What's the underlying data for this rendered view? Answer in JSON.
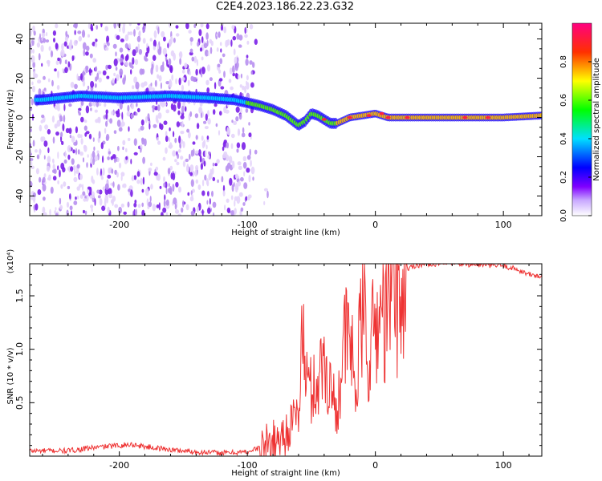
{
  "title": "C2E4.2023.186.22.23.G32",
  "chart_data": [
    {
      "type": "heatmap",
      "xlabel": "Height of straight line (km)",
      "ylabel": "Frequency (Hz)",
      "xlim": [
        -270,
        130
      ],
      "ylim": [
        -50,
        48
      ],
      "xticks": [
        -200,
        -100,
        0,
        100
      ],
      "yticks": [
        -40,
        -20,
        0,
        20,
        40
      ],
      "colorbar": {
        "label": "Normalized spectral amplitude",
        "range": [
          0,
          1
        ],
        "ticks": [
          0.0,
          0.2,
          0.4,
          0.6,
          0.8
        ]
      },
      "noise_region_x": [
        -270,
        -95
      ],
      "ridge": {
        "x": [
          -260,
          -230,
          -200,
          -160,
          -130,
          -110,
          -90,
          -80,
          -70,
          -60,
          -55,
          -50,
          -45,
          -40,
          -35,
          -30,
          -20,
          -10,
          0,
          10,
          20,
          40,
          60,
          80,
          100,
          130
        ],
        "frequency": [
          9,
          11,
          10,
          11,
          10,
          9,
          6,
          4,
          1,
          -4,
          -2,
          2,
          1,
          -1,
          -3,
          -3,
          0,
          1,
          2,
          0,
          0,
          0,
          0,
          0,
          0,
          1
        ]
      }
    },
    {
      "type": "line",
      "xlabel": "Height of straight line (km)",
      "ylabel": "SNR (10 * v/v)",
      "multiplier_label": "(x10⁴)",
      "xlim": [
        -270,
        130
      ],
      "ylim": [
        0,
        18000
      ],
      "xticks": [
        -200,
        -100,
        0,
        100
      ],
      "yticks": [
        5000,
        10000,
        15000
      ],
      "ytick_labels": [
        "0.5",
        "1.0",
        "1.5"
      ],
      "color": "#ee3333",
      "series": [
        {
          "x": [
            -270,
            -240,
            -220,
            -200,
            -190,
            -180,
            -160,
            -140,
            -120,
            -100,
            -90,
            -80,
            -70,
            -60,
            -57,
            -55,
            -50,
            -45,
            -40,
            -30,
            -25,
            -20,
            -15,
            -10,
            -5,
            0,
            5,
            10,
            15,
            20,
            25,
            30,
            40,
            50,
            60,
            80,
            100,
            110,
            120,
            130
          ],
          "values": [
            500,
            500,
            800,
            1000,
            1100,
            900,
            600,
            400,
            300,
            400,
            800,
            1200,
            2200,
            4000,
            12000,
            8000,
            6000,
            7000,
            9000,
            4000,
            10500,
            11000,
            6000,
            14000,
            9500,
            12000,
            13500,
            14500,
            16000,
            15000,
            17500,
            17800,
            18000,
            18000,
            18000,
            17900,
            17800,
            17500,
            17000,
            16800
          ]
        }
      ]
    }
  ]
}
